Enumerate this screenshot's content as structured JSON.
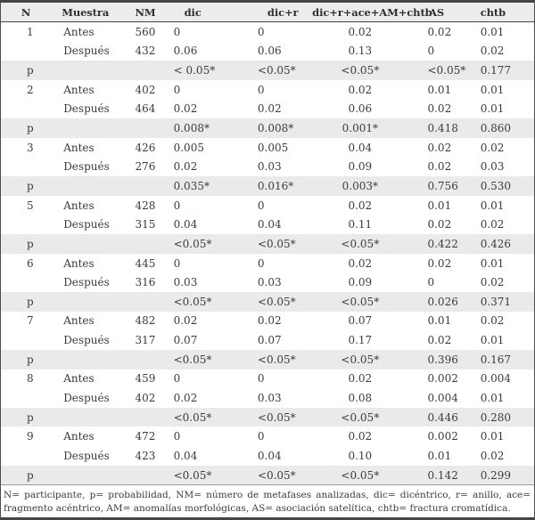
{
  "table": {
    "columns": [
      "N",
      "Muestra",
      "NM",
      "dic",
      "dic+r",
      "dic+r+ace+AM+chtb",
      "AS",
      "chtb"
    ],
    "body_rows": [
      [
        "1",
        "Antes",
        "560",
        "0",
        "0",
        "0.02",
        "0.02",
        "0.01"
      ],
      [
        "",
        "Después",
        "432",
        "0.06",
        "0.06",
        "0.13",
        "0",
        "0.02"
      ],
      [
        "p",
        "",
        "",
        "< 0.05*",
        "<0.05*",
        "<0.05*",
        "<0.05*",
        "0.177"
      ],
      [
        "2",
        "Antes",
        "402",
        "0",
        "0",
        "0.02",
        "0.01",
        "0.01"
      ],
      [
        "",
        "Después",
        "464",
        "0.02",
        "0.02",
        "0.06",
        "0.02",
        "0.01"
      ],
      [
        "p",
        "",
        "",
        "0.008*",
        "0.008*",
        "0.001*",
        "0.418",
        "0.860"
      ],
      [
        "3",
        "Antes",
        "426",
        "0.005",
        "0.005",
        "0.04",
        "0.02",
        "0.02"
      ],
      [
        "",
        "Después",
        "276",
        "0.02",
        "0.03",
        "0.09",
        "0.02",
        "0.03"
      ],
      [
        "p",
        "",
        "",
        "0.035*",
        "0.016*",
        "0.003*",
        "0.756",
        "0.530"
      ],
      [
        "5",
        "Antes",
        "428",
        "0",
        "0",
        "0.02",
        "0.01",
        "0.01"
      ],
      [
        "",
        "Después",
        "315",
        "0.04",
        "0.04",
        "0.11",
        "0.02",
        "0.02"
      ],
      [
        "p",
        "",
        "",
        "<0.05*",
        "<0.05*",
        "<0.05*",
        "0.422",
        "0.426"
      ],
      [
        "6",
        "Antes",
        "445",
        "0",
        "0",
        "0.02",
        "0.02",
        "0.01"
      ],
      [
        "",
        "Después",
        "316",
        "0.03",
        "0.03",
        "0.09",
        "0",
        "0.02"
      ],
      [
        "p",
        "",
        "",
        "<0.05*",
        "<0.05*",
        "<0.05*",
        "0.026",
        "0.371"
      ],
      [
        "7",
        "Antes",
        "482",
        "0.02",
        "0.02",
        "0.07",
        "0.01",
        "0.02"
      ],
      [
        "",
        "Después",
        "317",
        "0.07",
        "0.07",
        "0.17",
        "0.02",
        "0.01"
      ],
      [
        "p",
        "",
        "",
        "<0.05*",
        "<0.05*",
        "<0.05*",
        "0.396",
        "0.167"
      ],
      [
        "8",
        "Antes",
        "459",
        "0",
        "0",
        "0.02",
        "0.002",
        "0.004"
      ],
      [
        "",
        "Después",
        "402",
        "0.02",
        "0.03",
        "0.08",
        "0.004",
        "0.01"
      ],
      [
        "p",
        "",
        "",
        "<0.05*",
        "<0.05*",
        "<0.05*",
        "0.446",
        "0.280"
      ],
      [
        "9",
        "Antes",
        "472",
        "0",
        "0",
        "0.02",
        "0.002",
        "0.01"
      ],
      [
        "",
        "Después",
        "423",
        "0.04",
        "0.04",
        "0.10",
        "0.01",
        "0.02"
      ],
      [
        "p",
        "",
        "",
        "<0.05*",
        "<0.05*",
        "<0.05*",
        "0.142",
        "0.299"
      ]
    ],
    "footnote": "N= participante, p= probabilidad, NM= número de metafases analizadas, dic= dicéntrico, r= anillo, ace= fragmento acéntrico, AM= anomalías morfológicas, AS= asociación satelítica, chtb= fractura cromatídica."
  },
  "colors": {
    "header_bg": "#ececec",
    "p_row_bg": "#eaeaea",
    "border_dark": "#454545",
    "text": "#3b3b3b"
  }
}
